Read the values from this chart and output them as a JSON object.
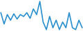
{
  "values": [
    5,
    2,
    6,
    3,
    5,
    3,
    4,
    3,
    5,
    4,
    6,
    5,
    8,
    3,
    1,
    6,
    2,
    5,
    2,
    4,
    2,
    6,
    2,
    1,
    5,
    2
  ],
  "line_color": "#2b8fce",
  "background_color": "#ffffff",
  "linewidth": 1.2
}
